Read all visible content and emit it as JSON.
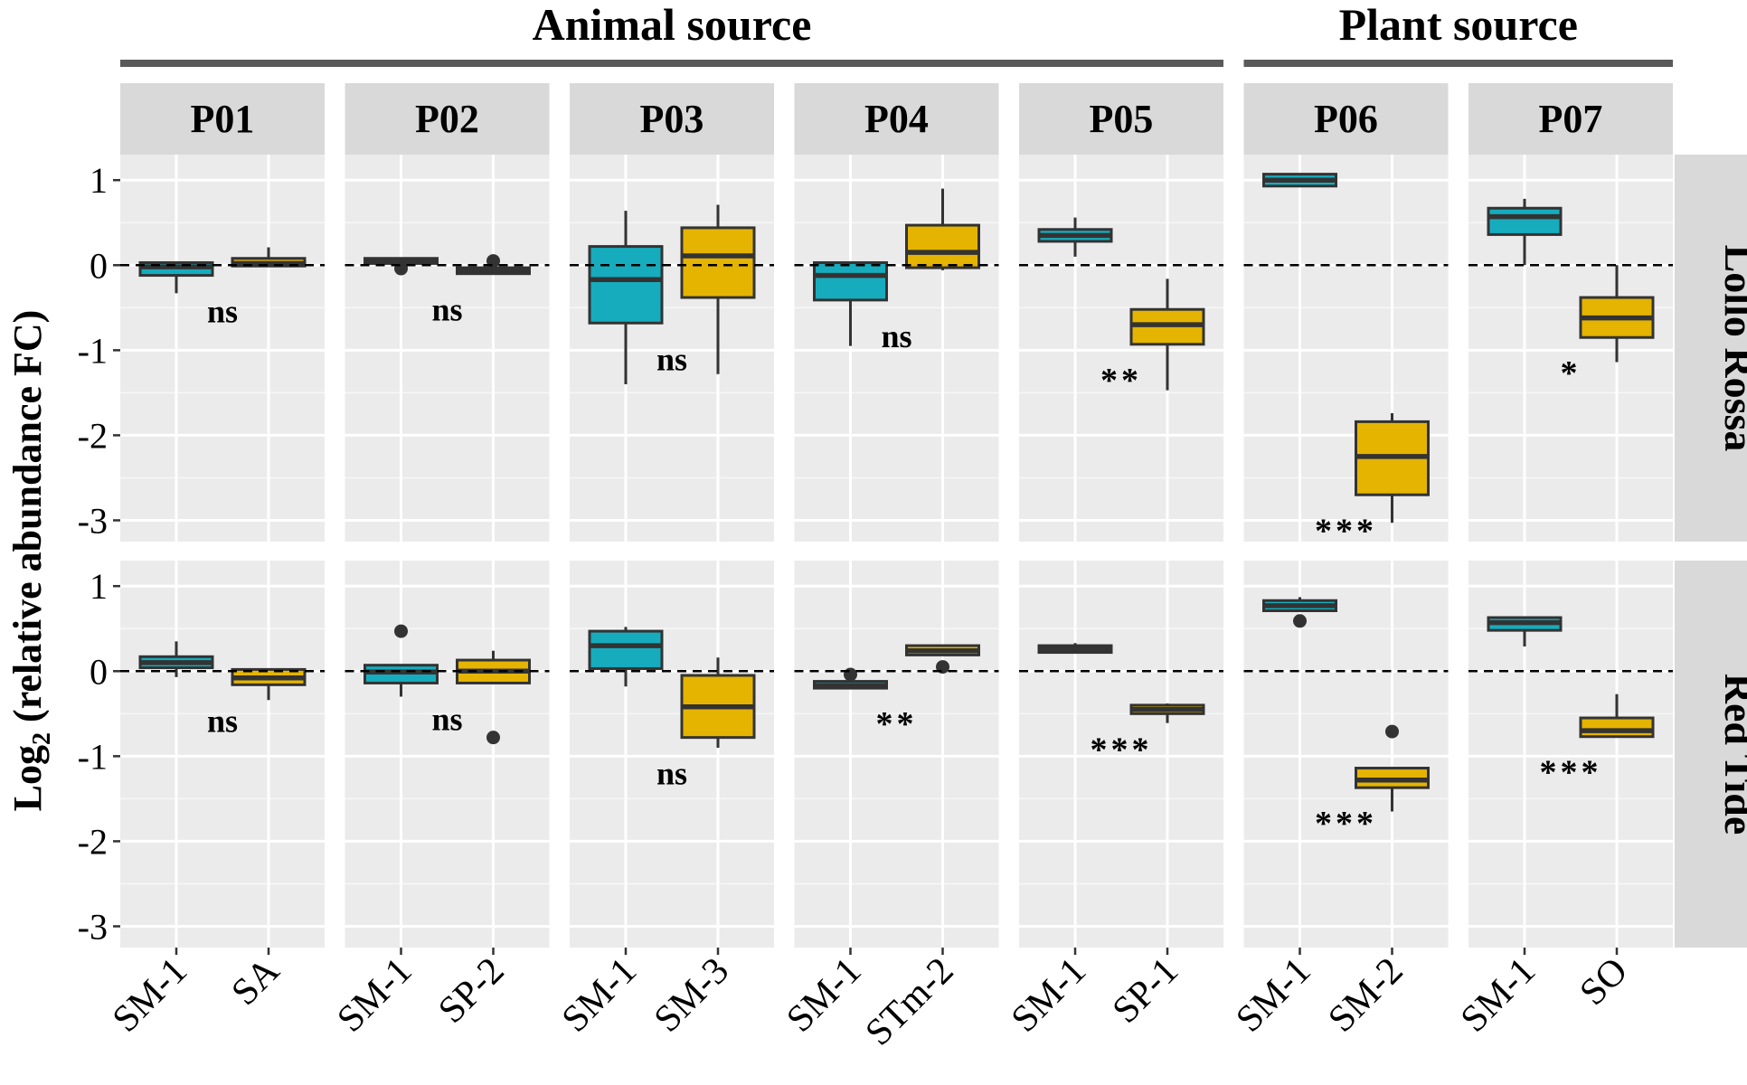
{
  "chart_data": {
    "type": "boxplot",
    "ylabel_main": "Log",
    "ylabel_sub": "2",
    "ylabel_rest": " (relative abundance FC)",
    "ylim": [
      -3.25,
      1.3
    ],
    "yticks": [
      1,
      0,
      -1,
      -2,
      -3
    ],
    "ytick_labels": [
      "1",
      "0",
      "-1",
      "-2",
      "-3"
    ],
    "reference_line": 0,
    "colors": {
      "first": "#16acbd",
      "second": "#e5b400",
      "panel_bg": "#ebebeb",
      "strip_bg": "#d9d9d9",
      "grid": "#ffffff",
      "outline": "#333333"
    },
    "groups": [
      {
        "label": "Animal source",
        "panels": [
          "P01",
          "P02",
          "P03",
          "P04",
          "P05"
        ]
      },
      {
        "label": "Plant source",
        "panels": [
          "P06",
          "P07"
        ]
      }
    ],
    "rows": [
      "Lollo Rossa",
      "Red Tide"
    ],
    "panels": [
      {
        "name": "P01",
        "categories": [
          "SM-1",
          "SA"
        ],
        "data": [
          {
            "sig": "ns",
            "boxes": [
              {
                "min": -0.33,
                "q1": -0.12,
                "median": -0.02,
                "q3": 0.03,
                "max": 0.03,
                "outliers": []
              },
              {
                "min": -0.01,
                "q1": -0.01,
                "median": 0.02,
                "q3": 0.08,
                "max": 0.21,
                "outliers": []
              }
            ]
          },
          {
            "sig": "ns",
            "boxes": [
              {
                "min": -0.07,
                "q1": 0.04,
                "median": 0.1,
                "q3": 0.17,
                "max": 0.35,
                "outliers": []
              },
              {
                "min": -0.34,
                "q1": -0.16,
                "median": -0.08,
                "q3": 0.02,
                "max": 0.02,
                "outliers": []
              }
            ]
          }
        ]
      },
      {
        "name": "P02",
        "categories": [
          "SM-1",
          "SP-2"
        ],
        "data": [
          {
            "sig": "ns",
            "boxes": [
              {
                "min": 0.02,
                "q1": 0.02,
                "median": 0.05,
                "q3": 0.08,
                "max": 0.08,
                "outliers": [
                  -0.04
                ]
              },
              {
                "min": -0.1,
                "q1": -0.1,
                "median": -0.06,
                "q3": -0.03,
                "max": -0.03,
                "outliers": [
                  0.05
                ]
              }
            ]
          },
          {
            "sig": "ns",
            "boxes": [
              {
                "min": -0.3,
                "q1": -0.14,
                "median": -0.01,
                "q3": 0.07,
                "max": 0.07,
                "outliers": [
                  0.47
                ]
              },
              {
                "min": -0.14,
                "q1": -0.14,
                "median": 0.0,
                "q3": 0.13,
                "max": 0.24,
                "outliers": [
                  -0.78
                ]
              }
            ]
          }
        ]
      },
      {
        "name": "P03",
        "categories": [
          "SM-1",
          "SM-3"
        ],
        "data": [
          {
            "sig": "ns",
            "boxes": [
              {
                "min": -1.4,
                "q1": -0.68,
                "median": -0.17,
                "q3": 0.22,
                "max": 0.64,
                "outliers": []
              },
              {
                "min": -1.28,
                "q1": -0.38,
                "median": 0.11,
                "q3": 0.44,
                "max": 0.71,
                "outliers": []
              }
            ]
          },
          {
            "sig": "ns",
            "boxes": [
              {
                "min": -0.18,
                "q1": 0.03,
                "median": 0.3,
                "q3": 0.47,
                "max": 0.52,
                "outliers": []
              },
              {
                "min": -0.9,
                "q1": -0.78,
                "median": -0.42,
                "q3": -0.05,
                "max": 0.16,
                "outliers": []
              }
            ]
          }
        ]
      },
      {
        "name": "P04",
        "categories": [
          "SM-1",
          "STm-2"
        ],
        "data": [
          {
            "sig": "ns",
            "boxes": [
              {
                "min": -0.95,
                "q1": -0.41,
                "median": -0.12,
                "q3": 0.03,
                "max": 0.03,
                "outliers": []
              },
              {
                "min": -0.06,
                "q1": -0.03,
                "median": 0.15,
                "q3": 0.47,
                "max": 0.9,
                "outliers": []
              }
            ]
          },
          {
            "sig": "**",
            "boxes": [
              {
                "min": -0.2,
                "q1": -0.2,
                "median": -0.17,
                "q3": -0.12,
                "max": -0.12,
                "outliers": [
                  -0.04
                ]
              },
              {
                "min": 0.19,
                "q1": 0.19,
                "median": 0.24,
                "q3": 0.3,
                "max": 0.3,
                "outliers": [
                  0.05
                ]
              }
            ]
          }
        ]
      },
      {
        "name": "P05",
        "categories": [
          "SM-1",
          "SP-1"
        ],
        "data": [
          {
            "sig": "**",
            "boxes": [
              {
                "min": 0.1,
                "q1": 0.28,
                "median": 0.35,
                "q3": 0.42,
                "max": 0.56,
                "outliers": []
              },
              {
                "min": -1.47,
                "q1": -0.93,
                "median": -0.7,
                "q3": -0.52,
                "max": -0.16,
                "outliers": []
              }
            ]
          },
          {
            "sig": "***",
            "boxes": [
              {
                "min": 0.22,
                "q1": 0.22,
                "median": 0.26,
                "q3": 0.3,
                "max": 0.33,
                "outliers": []
              },
              {
                "min": -0.61,
                "q1": -0.5,
                "median": -0.45,
                "q3": -0.4,
                "max": -0.38,
                "outliers": []
              }
            ]
          }
        ]
      },
      {
        "name": "P06",
        "categories": [
          "SM-1",
          "SM-2"
        ],
        "data": [
          {
            "sig": "***",
            "boxes": [
              {
                "min": 0.93,
                "q1": 0.93,
                "median": 1.0,
                "q3": 1.07,
                "max": 1.07,
                "outliers": []
              },
              {
                "min": -3.03,
                "q1": -2.7,
                "median": -2.25,
                "q3": -1.84,
                "max": -1.74,
                "outliers": []
              }
            ]
          },
          {
            "sig": "***",
            "boxes": [
              {
                "min": 0.71,
                "q1": 0.71,
                "median": 0.77,
                "q3": 0.83,
                "max": 0.87,
                "outliers": [
                  0.59
                ]
              },
              {
                "min": -1.65,
                "q1": -1.37,
                "median": -1.28,
                "q3": -1.14,
                "max": -1.14,
                "outliers": [
                  -0.71
                ]
              }
            ]
          }
        ]
      },
      {
        "name": "P07",
        "categories": [
          "SM-1",
          "SO"
        ],
        "data": [
          {
            "sig": "*",
            "boxes": [
              {
                "min": 0.0,
                "q1": 0.36,
                "median": 0.57,
                "q3": 0.67,
                "max": 0.78,
                "outliers": []
              },
              {
                "min": -1.14,
                "q1": -0.85,
                "median": -0.62,
                "q3": -0.38,
                "max": 0.0,
                "outliers": []
              }
            ]
          },
          {
            "sig": "***",
            "boxes": [
              {
                "min": 0.29,
                "q1": 0.48,
                "median": 0.57,
                "q3": 0.63,
                "max": 0.63,
                "outliers": []
              },
              {
                "min": -0.77,
                "q1": -0.77,
                "median": -0.7,
                "q3": -0.55,
                "max": -0.27,
                "outliers": []
              }
            ]
          }
        ]
      }
    ]
  }
}
